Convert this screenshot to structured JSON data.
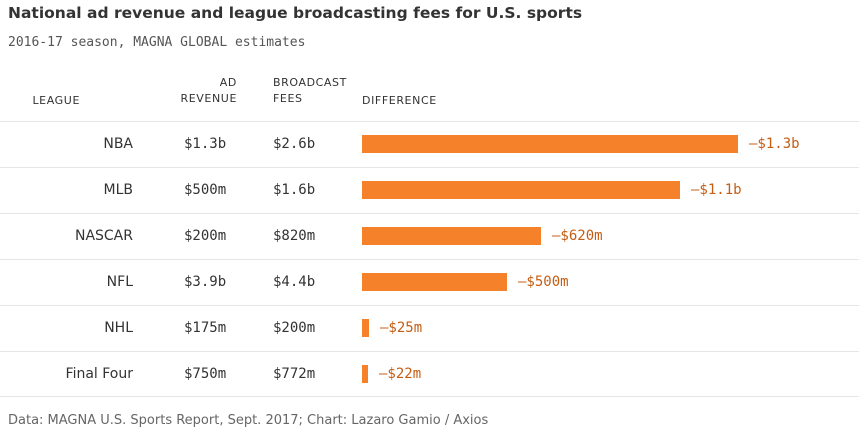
{
  "chart_data": {
    "type": "table",
    "title": "National ad revenue and league broadcasting fees for U.S. sports",
    "subtitle": "2016-17 season, MAGNA GLOBAL estimates",
    "columns": {
      "league": "LEAGUE",
      "ad_revenue": [
        "AD",
        "REVENUE"
      ],
      "broadcast_fees": [
        "BROADCAST",
        "FEES"
      ],
      "difference": "DIFFERENCE"
    },
    "rows": [
      {
        "league": "NBA",
        "ad_revenue": "$1.3b",
        "broadcast_fees": "$2.6b",
        "difference_label": "–$1.3b",
        "difference_value": -1300
      },
      {
        "league": "MLB",
        "ad_revenue": "$500m",
        "broadcast_fees": "$1.6b",
        "difference_label": "–$1.1b",
        "difference_value": -1100
      },
      {
        "league": "NASCAR",
        "ad_revenue": "$200m",
        "broadcast_fees": "$820m",
        "difference_label": "–$620m",
        "difference_value": -620
      },
      {
        "league": "NFL",
        "ad_revenue": "$3.9b",
        "broadcast_fees": "$4.4b",
        "difference_label": "–$500m",
        "difference_value": -500
      },
      {
        "league": "NHL",
        "ad_revenue": "$175m",
        "broadcast_fees": "$200m",
        "difference_label": "–$25m",
        "difference_value": -25
      },
      {
        "league": "Final Four",
        "ad_revenue": "$750m",
        "broadcast_fees": "$772m",
        "difference_label": "–$22m",
        "difference_value": -22
      }
    ],
    "bar_color": "#f6812b",
    "label_color": "#c45d14",
    "source": "Data: MAGNA U.S. Sports Report, Sept. 2017; Chart: Lazaro Gamio / Axios"
  }
}
